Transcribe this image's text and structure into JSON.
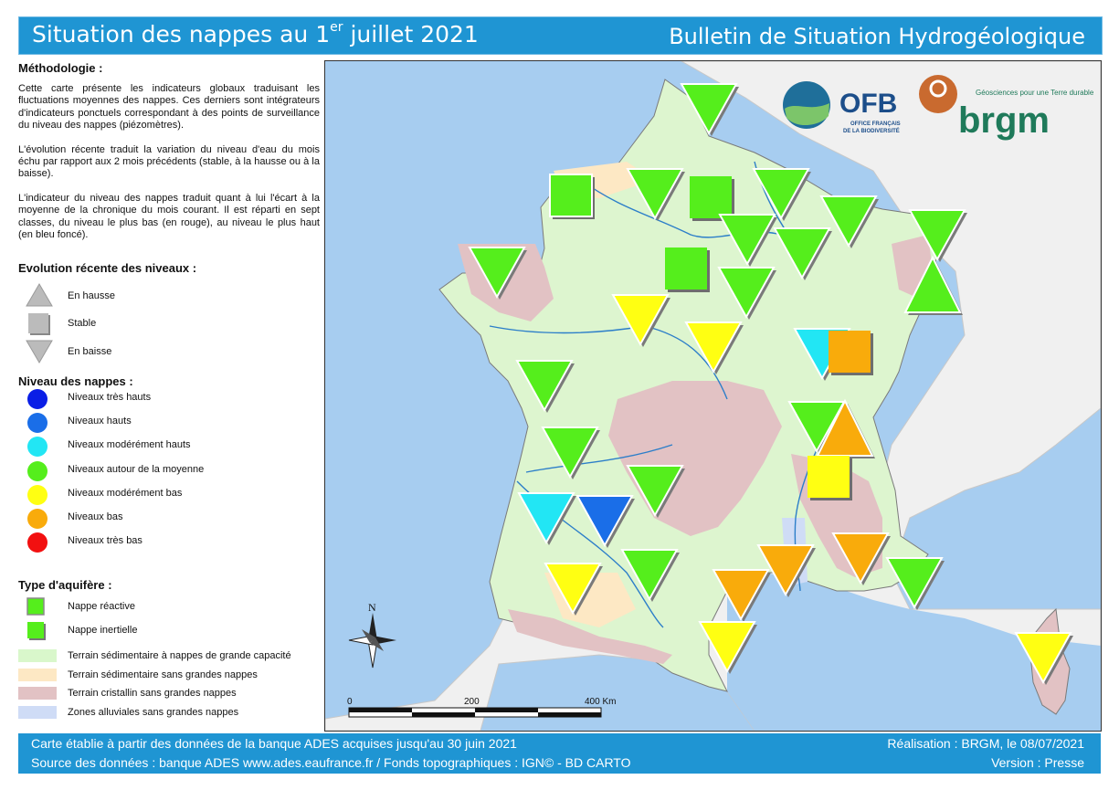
{
  "header": {
    "title_main": "Situation des nappes au 1",
    "title_sup": "er",
    "title_end": " juillet 2021",
    "subtitle": "Bulletin de Situation Hydrogéologique"
  },
  "methodology": {
    "heading": "Méthodologie :",
    "p1": "Cette carte présente les indicateurs globaux traduisant les fluctuations moyennes des nappes. Ces derniers sont intégrateurs d'indicateurs ponctuels correspondant à des points de surveillance du niveau des nappes (piézomètres).",
    "p2": "L'évolution récente traduit la variation du niveau d'eau du mois échu par rapport aux 2 mois précédents (stable, à la hausse ou à la baisse).",
    "p3": "L'indicateur du niveau des nappes traduit quant à lui l'écart à la moyenne de la chronique du mois courant. Il est réparti en sept classes, du niveau le plus bas (en rouge), au niveau le plus haut (en bleu foncé)."
  },
  "evolution": {
    "heading": "Evolution récente des niveaux :",
    "items": [
      {
        "label": "En hausse",
        "icon": "triangle-up-icon"
      },
      {
        "label": "Stable",
        "icon": "square-icon"
      },
      {
        "label": "En baisse",
        "icon": "triangle-down-icon"
      }
    ]
  },
  "levels": {
    "heading": "Niveau des nappes :",
    "items": [
      {
        "label": "Niveaux très hauts",
        "color": "#0a1ee6"
      },
      {
        "label": "Niveaux hauts",
        "color": "#1a6ee8"
      },
      {
        "label": "Niveaux modérément hauts",
        "color": "#22e6f4"
      },
      {
        "label": "Niveaux autour de la moyenne",
        "color": "#55ee1c"
      },
      {
        "label": "Niveaux modérément bas",
        "color": "#ffff12"
      },
      {
        "label": "Niveaux bas",
        "color": "#f9ab0b"
      },
      {
        "label": "Niveaux très bas",
        "color": "#f21010"
      }
    ]
  },
  "aquifer": {
    "heading": "Type d'aquifère :",
    "items": [
      {
        "label": "Nappe réactive"
      },
      {
        "label": "Nappe inertielle"
      }
    ]
  },
  "zones": [
    {
      "label": "Terrain sédimentaire à nappes de grande capacité",
      "color": "#d9f7cb"
    },
    {
      "label": "Terrain sédimentaire sans grandes nappes",
      "color": "#fde8c4"
    },
    {
      "label": "Terrain cristallin sans grandes nappes",
      "color": "#e2c2c4"
    },
    {
      "label": "Zones alluviales sans grandes nappes",
      "color": "#cfdcf6"
    }
  ],
  "map": {
    "north_label": "N",
    "scale_labels": [
      "0",
      "200",
      "400 Km"
    ],
    "logos": {
      "ofb": "OFB",
      "ofb_sub1": "OFFICE FRANÇAIS",
      "ofb_sub2": "DE LA BIODIVERSITÉ",
      "brgm": "brgm",
      "brgm_tagline": "Géosciences pour une Terre durable"
    },
    "colors": {
      "sea": "#a7cdf0",
      "land": "#ddf5cf",
      "neighbor": "#f0f0f0",
      "river": "#2c7ec9"
    }
  },
  "footer": {
    "line1_left": "Carte établie à partir des données de la banque ADES acquises jusqu'au 30 juin 2021",
    "line2_left": "Source des données : banque ADES www.ades.eaufrance.fr / Fonds topographiques : IGN© - BD CARTO",
    "line1_right": "Réalisation : BRGM, le 08/07/2021",
    "line2_right": "Version : Presse"
  }
}
